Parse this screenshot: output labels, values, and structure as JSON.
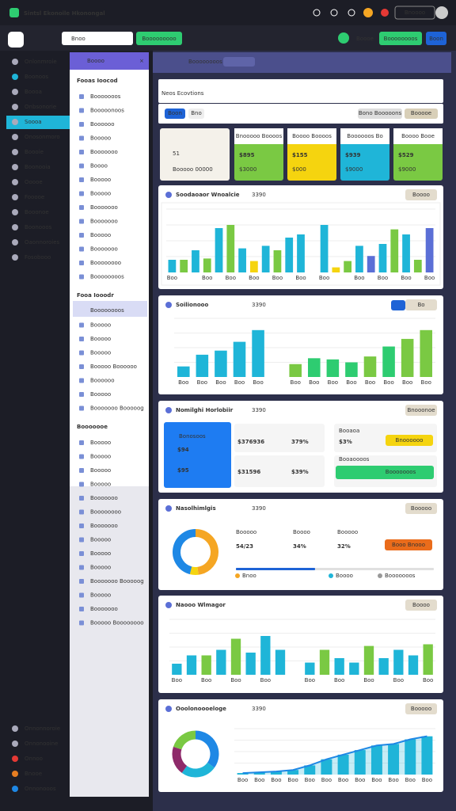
{
  "app_bar": {
    "title": "Sintsl Ekonoile Hkonongal",
    "button": "Bnoooo"
  },
  "toolbar": {
    "search": "Bnoo",
    "button_left": "Booooooooo",
    "user": "Boooe",
    "button_right": "Boooooooos",
    "button_blue": "Boon"
  },
  "nav": {
    "active": 4,
    "items": [
      "Onlonmroie",
      "Boonoos",
      "Boooa",
      "Onbsonorie",
      "Soooa",
      "Onosonmoro",
      "Boooie",
      "Boonooia",
      "Ooooe",
      "Fooooe",
      "Booonoe",
      "Boonooos",
      "Oaonnoroies",
      "Fosobooo"
    ],
    "bottom_items": [
      "Onnonnoroie",
      "Onnonooine",
      "Onnoo",
      "Bnooe",
      "Onnonooos"
    ]
  },
  "panel": {
    "title": "Boooo",
    "active": "Boooooooos",
    "sections": [
      {
        "title": "Fooas Ioocod",
        "items": [
          "Booooooos",
          "Booooonoos",
          "Boooooo",
          "Booooo",
          "Booooooo",
          "Boooo",
          "Booooo",
          "Booooo",
          "Booooooo",
          "Booooooo",
          "Booooo",
          "Booooooo",
          "Boooooooo",
          "Boooooooos"
        ]
      },
      {
        "title": "Fooa Iooodr",
        "items": [
          "Booooo",
          "Booooo",
          "Booooo",
          "Booooo",
          "Booooo Boooooo",
          "Boooooo",
          "Booooo",
          "Booooooo Booooog"
        ]
      },
      {
        "title": "Booooooe",
        "items": [
          "Booooo",
          "Booooo",
          "Booooo",
          "Booooo",
          "Booooooo",
          "Boooooooo",
          "Booooooo",
          "Booooo",
          "Booooo",
          "Booooo",
          "Booooooo Booooog",
          "Booooo",
          "Booooooo",
          "Booooo Boooooooo"
        ]
      }
    ]
  },
  "main_bar": {
    "label": "Boooooooos"
  },
  "page_title": "Neos Ecovtions",
  "filters": {
    "primary": "Boon",
    "secondary": "Bno",
    "right": [
      "Bono Booooons",
      "Booooe"
    ]
  },
  "kpis": [
    {
      "value": "51",
      "label": "Booooo 00000"
    },
    {
      "title": "Bnooooo Boooos",
      "value": "$895",
      "delta": "$3000",
      "color": "#7ac943"
    },
    {
      "title": "Boooo Boooos",
      "value": "$155",
      "delta": "$000",
      "color": "#f5d40f"
    },
    {
      "title": "Boooooos Bo",
      "value": "$939",
      "delta": "$9000",
      "color": "#1fb5d8"
    },
    {
      "title": "Boooo Booe",
      "value": "$529",
      "delta": "$9000",
      "color": "#7ac943"
    }
  ],
  "chart_a": {
    "title": "Soodaoaor Wnoalcie",
    "tag": "3390",
    "button": "Boooo",
    "ylim": [
      0,
      100
    ],
    "values": [
      20,
      20,
      35,
      22,
      70,
      75,
      38,
      18,
      42,
      35,
      55,
      60,
      null,
      75,
      8,
      18,
      42,
      26,
      45,
      68,
      60,
      20,
      70
    ],
    "colors": [
      "#1fb5d8",
      "#7ac943",
      "#1fb5d8",
      "#7ac943",
      "#1fb5d8",
      "#7ac943",
      "#1fb5d8",
      "#f5d40f",
      "#1fb5d8",
      "#7ac943",
      "#1fb5d8",
      "#1fb5d8",
      null,
      "#1fb5d8",
      "#f5d40f",
      "#7ac943",
      "#1fb5d8",
      "#5b6fd6",
      "#1fb5d8",
      "#7ac943",
      "#1fb5d8",
      "#7ac943",
      "#5b6fd6"
    ],
    "categories": [
      "Boo",
      null,
      null,
      "Boo",
      null,
      "Boo",
      null,
      "Boo",
      null,
      "Boo",
      null,
      "Boo",
      null,
      "Boo",
      null,
      null,
      "Boo",
      null,
      "Boo",
      null,
      "Boo",
      null,
      "Boo"
    ]
  },
  "chart_b": {
    "title": "Soilionooo",
    "tag": "3390",
    "button": "Bo",
    "ylim": [
      0,
      100
    ],
    "values": [
      18,
      38,
      45,
      60,
      80,
      null,
      22,
      32,
      30,
      25,
      35,
      52,
      65,
      80
    ],
    "colors": [
      "#1fb5d8",
      "#1fb5d8",
      "#1fb5d8",
      "#1fb5d8",
      "#1fb5d8",
      null,
      "#7ac943",
      "#2ecc71",
      "#2ecc71",
      "#2ecc71",
      "#7ac943",
      "#2ecc71",
      "#7ac943",
      "#7ac943"
    ],
    "categories": [
      "Boo",
      "Boo",
      "Boo",
      "Boo",
      "Boo",
      null,
      "Boo",
      "Boo",
      "Boo",
      "Boo",
      "Boo",
      "Boo",
      "Boo",
      "Boo"
    ]
  },
  "stats": {
    "title": "Nomilghi Horlobiir",
    "tag": "3390",
    "button": "Bnooonoe",
    "tile": {
      "label": "Bonosoos",
      "value": "$94",
      "value2": "$95"
    },
    "middle": [
      "$376936",
      "379%",
      "$31596",
      "$39%"
    ],
    "right": {
      "label": "Booaoa",
      "value": "$3%",
      "yellow": "Bnoooooo",
      "label2": "Booaoooos",
      "green": "Booooooos"
    }
  },
  "donut": {
    "title": "Nasolhimlgis",
    "tag": "3390",
    "button": "Booooo",
    "values": [
      48,
      6,
      46
    ],
    "colors": [
      "#f5a623",
      "#f5d40f",
      "#1e88e5"
    ],
    "figures": [
      "54/23",
      "34%",
      "32%"
    ],
    "labels": [
      "Booooo",
      "Boooo",
      "Booooo"
    ],
    "action": "Booo Bnooo",
    "legend": [
      "Bnoo",
      "Boooo",
      "Booooooos"
    ]
  },
  "chart_c": {
    "title": "Naooo Wlmagor",
    "button": "Boooo",
    "ylim": [
      0,
      100
    ],
    "values": [
      20,
      35,
      35,
      45,
      65,
      40,
      70,
      45,
      null,
      22,
      45,
      30,
      22,
      52,
      30,
      45,
      35,
      55
    ],
    "colors": [
      "#1fb5d8",
      "#1fb5d8",
      "#7ac943",
      "#1fb5d8",
      "#7ac943",
      "#1fb5d8",
      "#1fb5d8",
      "#1fb5d8",
      null,
      "#1fb5d8",
      "#7ac943",
      "#1fb5d8",
      "#1fb5d8",
      "#7ac943",
      "#1fb5d8",
      "#1fb5d8",
      "#1fb5d8",
      "#7ac943"
    ],
    "categories": [
      "Boo",
      null,
      "Boo",
      null,
      "Boo",
      null,
      "Boo",
      null,
      null,
      "Boo",
      null,
      "Boo",
      null,
      "Boo",
      null,
      "Boo",
      null,
      "Boo"
    ]
  },
  "chart_d": {
    "title": "Ooolonoooeloge",
    "tag": "3390",
    "button": "Booooo",
    "ylim": [
      0,
      60
    ],
    "donut": [
      35,
      25,
      20,
      20
    ],
    "donut_colors": [
      "#1e88e5",
      "#1fb5d8",
      "#8e2a6a",
      "#7ac943"
    ],
    "values": [
      2,
      3,
      4,
      6,
      12,
      20,
      26,
      32,
      38,
      40,
      46,
      50
    ],
    "color": "#1fb5d8",
    "line_color": "#1e88e5",
    "categories": [
      "Boo",
      "Boo",
      "Boo",
      "Boo",
      "Boo",
      "Boo",
      "Boo",
      "Boo",
      "Boo",
      "Boo",
      "Boo",
      "Boo"
    ]
  }
}
